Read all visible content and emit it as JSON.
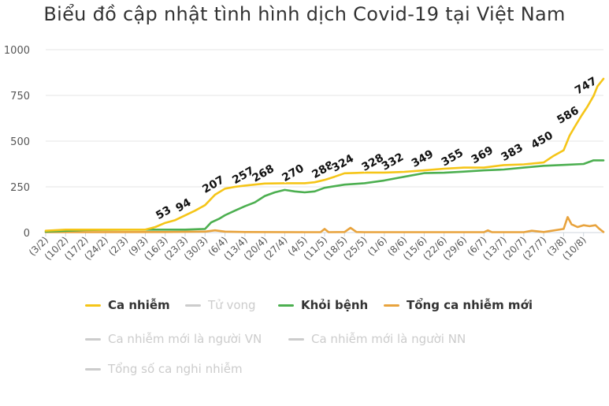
{
  "chart_data": {
    "type": "line",
    "title": "Biểu đồ cập nhật tình hình dịch Covid-19 tại Việt Nam",
    "ylim": [
      0,
      1000
    ],
    "yticks": [
      "0",
      "250",
      "500",
      "750",
      "1000"
    ],
    "categories": [
      "(3/2)",
      "(10/2)",
      "(17/2)",
      "(24/2)",
      "(2/3)",
      "(9/3)",
      "(16/3)",
      "(23/3)",
      "(30/3)",
      "(6/4)",
      "(13/4)",
      "(20/4)",
      "(27/4)",
      "(4/5)",
      "(11/5)",
      "(18/5)",
      "(25/5)",
      "(1/6)",
      "(8/6)",
      "(15/6)",
      "(22/6)",
      "(29/6)",
      "(6/7)",
      "(13/7)",
      "(20/7)",
      "(27/7)",
      "(3/8)",
      "(10/8)"
    ],
    "grid": true,
    "legend_position": "bottom",
    "series": [
      {
        "name": "Ca nhiễm",
        "color": "#f5c518",
        "visible": true,
        "x": [
          0,
          1,
          2,
          3,
          4,
          5,
          5.5,
          6,
          6.5,
          7,
          7.5,
          8,
          8.5,
          9,
          9.5,
          10,
          11,
          12,
          13,
          13.5,
          14,
          14.5,
          15,
          15.5,
          16,
          17,
          18,
          19,
          20,
          21,
          22,
          23,
          24,
          25,
          25.5,
          26,
          26.3,
          26.6,
          26.9,
          27.2,
          27.5,
          27.7,
          28
        ],
        "values": [
          10,
          16,
          16,
          16,
          16,
          16,
          30,
          53,
          68,
          94,
          120,
          150,
          207,
          240,
          250,
          257,
          268,
          270,
          270,
          275,
          288,
          305,
          324,
          326,
          328,
          328,
          332,
          340,
          349,
          355,
          355,
          369,
          373,
          383,
          420,
          450,
          530,
          586,
          640,
          690,
          747,
          800,
          841
        ],
        "data_labels": [
          {
            "x": 6,
            "y": 53,
            "text": "53"
          },
          {
            "x": 7,
            "y": 94,
            "text": "94"
          },
          {
            "x": 8.5,
            "y": 207,
            "text": "207"
          },
          {
            "x": 10,
            "y": 257,
            "text": "257"
          },
          {
            "x": 11,
            "y": 268,
            "text": "268"
          },
          {
            "x": 12.5,
            "y": 270,
            "text": "270"
          },
          {
            "x": 14,
            "y": 288,
            "text": "288"
          },
          {
            "x": 15,
            "y": 324,
            "text": "324"
          },
          {
            "x": 16.5,
            "y": 328,
            "text": "328"
          },
          {
            "x": 17.5,
            "y": 332,
            "text": "332"
          },
          {
            "x": 19,
            "y": 349,
            "text": "349"
          },
          {
            "x": 20.5,
            "y": 355,
            "text": "355"
          },
          {
            "x": 22,
            "y": 369,
            "text": "369"
          },
          {
            "x": 23.5,
            "y": 383,
            "text": "383"
          },
          {
            "x": 25,
            "y": 450,
            "text": "450"
          },
          {
            "x": 26.3,
            "y": 586,
            "text": "586"
          },
          {
            "x": 27.2,
            "y": 747,
            "text": "747"
          }
        ]
      },
      {
        "name": "Tử vong",
        "color": "#000000",
        "visible": false,
        "x": [],
        "values": [],
        "data_labels": []
      },
      {
        "name": "Khỏi bệnh",
        "color": "#4caf50",
        "visible": true,
        "x": [
          0,
          2,
          4,
          6,
          7,
          8,
          8.3,
          8.7,
          9,
          9.5,
          10,
          10.5,
          11,
          11.5,
          12,
          12.5,
          13,
          13.5,
          14,
          15,
          16,
          17,
          18,
          19,
          20,
          21,
          22,
          23,
          24,
          25,
          26,
          27,
          27.5,
          28
        ],
        "values": [
          5,
          14,
          16,
          16,
          16,
          20,
          55,
          75,
          95,
          120,
          144,
          165,
          200,
          220,
          233,
          225,
          220,
          225,
          245,
          262,
          270,
          285,
          305,
          325,
          327,
          333,
          340,
          345,
          355,
          365,
          370,
          375,
          395,
          395
        ],
        "data_labels": []
      },
      {
        "name": "Tổng ca nhiễm mới",
        "color": "#e8a33d",
        "visible": true,
        "x": [
          0,
          6,
          8,
          8.5,
          9,
          10,
          13,
          13.8,
          14,
          14.2,
          15,
          15.3,
          15.6,
          16,
          22,
          22.2,
          22.4,
          24,
          24.4,
          25,
          26,
          26.2,
          26.4,
          26.7,
          27,
          27.3,
          27.6,
          27.8,
          28
        ],
        "values": [
          2,
          3,
          5,
          12,
          5,
          3,
          2,
          2,
          20,
          2,
          3,
          26,
          3,
          2,
          2,
          12,
          2,
          2,
          10,
          3,
          20,
          85,
          45,
          30,
          40,
          35,
          40,
          20,
          3
        ],
        "data_labels": []
      },
      {
        "name": "Ca nhiễm mới là người VN",
        "color": "#000000",
        "visible": false,
        "x": [],
        "values": [],
        "data_labels": []
      },
      {
        "name": "Ca nhiễm mới là người NN",
        "color": "#000000",
        "visible": false,
        "x": [],
        "values": [],
        "data_labels": []
      },
      {
        "name": "Tổng số ca nghi nhiễm",
        "color": "#000000",
        "visible": false,
        "x": [],
        "values": [],
        "data_labels": []
      }
    ]
  }
}
